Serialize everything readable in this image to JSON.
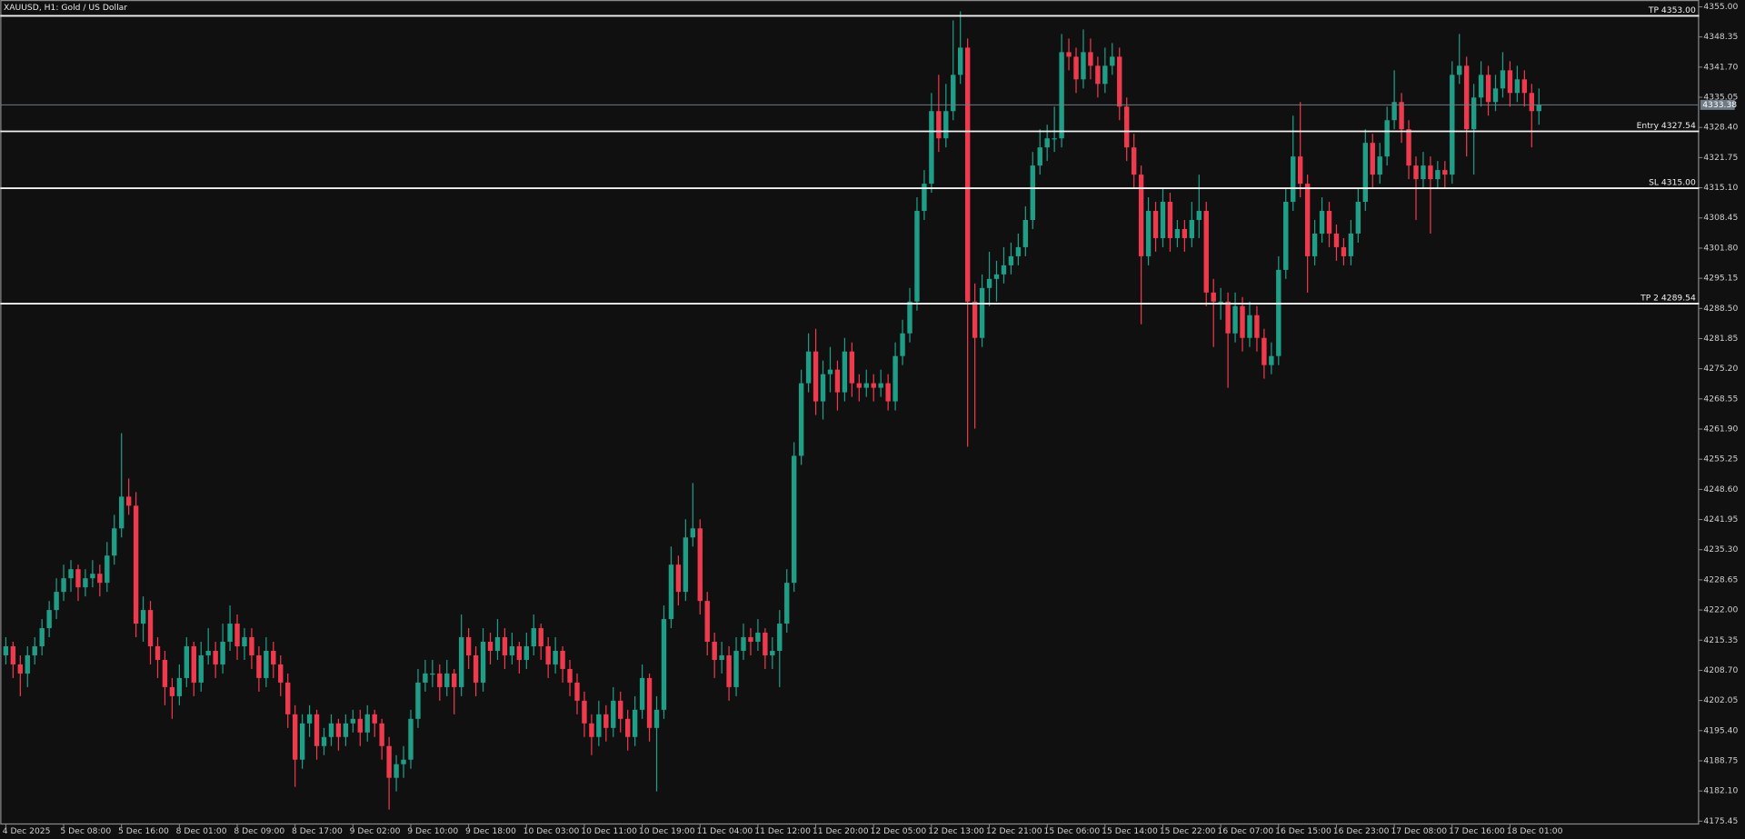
{
  "chart_data": {
    "type": "candlestick",
    "title": "XAUUSD, H1:  Gold / US Dollar",
    "up_color": "#1f9e87",
    "down_color": "#ee3a4c",
    "ylim": [
      4174.7,
      4356.5
    ],
    "yticks": [
      {
        "value": 4355,
        "label": "4355.00"
      },
      4348.35,
      {
        "value": 4341.7,
        "label": "4341.70"
      },
      4335.05,
      {
        "value": 4328.4,
        "label": "4328.40"
      },
      4321.75,
      {
        "value": 4315.1,
        "label": "4315.10"
      },
      4308.45,
      {
        "value": 4301.8,
        "label": "4301.80"
      },
      4295.15,
      {
        "value": 4288.5,
        "label": "4288.50"
      },
      4281.85,
      {
        "value": 4275.2,
        "label": "4275.20"
      },
      4268.55,
      {
        "value": 4261.9,
        "label": "4261.90"
      },
      4255.25,
      {
        "value": 4248.6,
        "label": "4248.60"
      },
      4241.95,
      {
        "value": 4235.3,
        "label": "4235.30"
      },
      4228.65,
      {
        "value": 4222,
        "label": "4222.00"
      },
      4215.35,
      {
        "value": 4208.7,
        "label": "4208.70"
      },
      4202.05,
      {
        "value": 4195.4,
        "label": "4195.40"
      },
      4188.75,
      {
        "value": 4182.1,
        "label": "4182.10"
      },
      4175.45
    ],
    "levels": [
      {
        "label": "TP 4353.00",
        "value": 4353
      },
      {
        "label": "Entry 4327.54",
        "value": 4327.54
      },
      {
        "label": "SL 4315.00",
        "value": 4315
      },
      {
        "label": "TP 2 4289.54",
        "value": 4289.54
      }
    ],
    "bid_line": 4333.38,
    "x": [
      "4 Dec 2025",
      null,
      null,
      null,
      null,
      null,
      null,
      null,
      "5 Dec 08:00",
      null,
      null,
      null,
      null,
      null,
      null,
      null,
      "5 Dec 16:00",
      null,
      null,
      null,
      null,
      null,
      null,
      null,
      "8 Dec 01:00",
      null,
      null,
      null,
      null,
      null,
      null,
      null,
      "8 Dec 09:00",
      null,
      null,
      null,
      null,
      null,
      null,
      null,
      "8 Dec 17:00",
      null,
      null,
      null,
      null,
      null,
      null,
      null,
      "9 Dec 02:00",
      null,
      null,
      null,
      null,
      null,
      null,
      null,
      "9 Dec 10:00",
      null,
      null,
      null,
      null,
      null,
      null,
      null,
      "9 Dec 18:00",
      null,
      null,
      null,
      null,
      null,
      null,
      null,
      "10 Dec 03:00",
      null,
      null,
      null,
      null,
      null,
      null,
      null,
      "10 Dec 11:00",
      null,
      null,
      null,
      null,
      null,
      null,
      null,
      "10 Dec 19:00",
      null,
      null,
      null,
      null,
      null,
      null,
      null,
      "11 Dec 04:00",
      null,
      null,
      null,
      null,
      null,
      null,
      null,
      "11 Dec 12:00",
      null,
      null,
      null,
      null,
      null,
      null,
      null,
      "11 Dec 20:00",
      null,
      null,
      null,
      null,
      null,
      null,
      null,
      "12 Dec 05:00",
      null,
      null,
      null,
      null,
      null,
      null,
      null,
      "12 Dec 13:00",
      null,
      null,
      null,
      null,
      null,
      null,
      null,
      "12 Dec 21:00",
      null,
      null,
      null,
      null,
      null,
      null,
      null,
      "15 Dec 06:00",
      null,
      null,
      null,
      null,
      null,
      null,
      null,
      "15 Dec 14:00",
      null,
      null,
      null,
      null,
      null,
      null,
      null,
      "15 Dec 22:00",
      null,
      null,
      null,
      null,
      null,
      null,
      null,
      "16 Dec 07:00",
      null,
      null,
      null,
      null,
      null,
      null,
      null,
      "16 Dec 15:00",
      null,
      null,
      null,
      null,
      null,
      null,
      null,
      "16 Dec 23:00",
      null,
      null,
      null,
      null,
      null,
      null,
      null,
      "17 Dec 08:00",
      null,
      null,
      null,
      null,
      null,
      null,
      null,
      "17 Dec 16:00",
      null,
      null,
      null,
      null,
      null,
      null,
      null,
      "18 Dec 01:00",
      null,
      null,
      null,
      null
    ],
    "candles": [
      [
        4212,
        4216,
        4210,
        4214
      ],
      [
        4214,
        4215,
        4207,
        4210
      ],
      [
        4210,
        4212,
        4203,
        4208
      ],
      [
        4208,
        4214,
        4205,
        4212
      ],
      [
        4212,
        4216,
        4210,
        4214
      ],
      [
        4214,
        4220,
        4212,
        4218
      ],
      [
        4218,
        4224,
        4216,
        4222
      ],
      [
        4222,
        4229,
        4220,
        4226
      ],
      [
        4226,
        4232,
        4224,
        4229
      ],
      [
        4229,
        4233,
        4226,
        4231
      ],
      [
        4231,
        4232,
        4224,
        4227
      ],
      [
        4227,
        4231,
        4225,
        4229
      ],
      [
        4229,
        4233,
        4227,
        4230
      ],
      [
        4230,
        4232,
        4225,
        4228
      ],
      [
        4228,
        4237,
        4226,
        4234
      ],
      [
        4234,
        4243,
        4232,
        4240
      ],
      [
        4240,
        4261,
        4238,
        4247
      ],
      [
        4247,
        4251,
        4243,
        4245
      ],
      [
        4245,
        4248,
        4216,
        4219
      ],
      [
        4219,
        4225,
        4215,
        4222
      ],
      [
        4222,
        4224,
        4210,
        4214
      ],
      [
        4214,
        4216,
        4207,
        4211
      ],
      [
        4211,
        4213,
        4201,
        4205
      ],
      [
        4205,
        4207,
        4198,
        4203
      ],
      [
        4203,
        4210,
        4201,
        4207
      ],
      [
        4207,
        4216,
        4205,
        4214
      ],
      [
        4214,
        4215,
        4203,
        4206
      ],
      [
        4206,
        4215,
        4204,
        4212
      ],
      [
        4212,
        4218,
        4210,
        4213
      ],
      [
        4213,
        4215,
        4207,
        4210
      ],
      [
        4210,
        4219,
        4208,
        4215
      ],
      [
        4215,
        4223,
        4213,
        4219
      ],
      [
        4219,
        4221,
        4211,
        4214
      ],
      [
        4214,
        4218,
        4211,
        4216
      ],
      [
        4216,
        4218,
        4209,
        4212
      ],
      [
        4212,
        4214,
        4204,
        4207
      ],
      [
        4207,
        4216,
        4205,
        4213
      ],
      [
        4213,
        4215,
        4207,
        4210
      ],
      [
        4210,
        4212,
        4203,
        4206
      ],
      [
        4206,
        4208,
        4196,
        4199
      ],
      [
        4199,
        4201,
        4183,
        4189
      ],
      [
        4189,
        4199,
        4187,
        4197
      ],
      [
        4197,
        4201,
        4194,
        4199
      ],
      [
        4199,
        4200,
        4189,
        4192
      ],
      [
        4192,
        4196,
        4190,
        4194
      ],
      [
        4194,
        4199,
        4192,
        4197
      ],
      [
        4197,
        4198,
        4191,
        4194
      ],
      [
        4194,
        4199,
        4192,
        4197
      ],
      [
        4197,
        4200,
        4195,
        4198
      ],
      [
        4198,
        4200,
        4192,
        4195
      ],
      [
        4195,
        4201,
        4193,
        4199
      ],
      [
        4199,
        4200,
        4194,
        4197
      ],
      [
        4197,
        4198,
        4189,
        4192
      ],
      [
        4192,
        4194,
        4178,
        4185
      ],
      [
        4185,
        4190,
        4182,
        4188
      ],
      [
        4188,
        4192,
        4185,
        4189
      ],
      [
        4189,
        4200,
        4187,
        4198
      ],
      [
        4198,
        4209,
        4196,
        4206
      ],
      [
        4206,
        4211,
        4204,
        4208
      ],
      [
        4208,
        4211,
        4205,
        4208
      ],
      [
        4208,
        4210,
        4202,
        4205
      ],
      [
        4205,
        4211,
        4203,
        4208
      ],
      [
        4208,
        4209,
        4199,
        4205
      ],
      [
        4205,
        4221,
        4203,
        4216
      ],
      [
        4216,
        4218,
        4209,
        4212
      ],
      [
        4212,
        4214,
        4203,
        4206
      ],
      [
        4206,
        4218,
        4204,
        4215
      ],
      [
        4215,
        4217,
        4210,
        4213
      ],
      [
        4213,
        4220,
        4211,
        4216
      ],
      [
        4216,
        4218,
        4209,
        4212
      ],
      [
        4212,
        4217,
        4210,
        4214
      ],
      [
        4214,
        4215,
        4208,
        4211
      ],
      [
        4211,
        4217,
        4209,
        4214
      ],
      [
        4214,
        4221,
        4212,
        4218
      ],
      [
        4218,
        4219,
        4211,
        4214
      ],
      [
        4214,
        4216,
        4207,
        4210
      ],
      [
        4210,
        4216,
        4208,
        4213
      ],
      [
        4213,
        4214,
        4206,
        4209
      ],
      [
        4209,
        4211,
        4203,
        4206
      ],
      [
        4206,
        4208,
        4199,
        4202
      ],
      [
        4202,
        4204,
        4194,
        4197
      ],
      [
        4197,
        4199,
        4190,
        4194
      ],
      [
        4194,
        4202,
        4192,
        4199
      ],
      [
        4199,
        4201,
        4193,
        4196
      ],
      [
        4196,
        4205,
        4194,
        4202
      ],
      [
        4202,
        4204,
        4195,
        4198
      ],
      [
        4198,
        4200,
        4191,
        4194
      ],
      [
        4194,
        4203,
        4192,
        4200
      ],
      [
        4200,
        4210,
        4198,
        4207
      ],
      [
        4207,
        4208,
        4193,
        4196
      ],
      [
        4196,
        4203,
        4182,
        4200
      ],
      [
        4200,
        4223,
        4198,
        4220
      ],
      [
        4220,
        4236,
        4218,
        4232
      ],
      [
        4232,
        4234,
        4223,
        4226
      ],
      [
        4226,
        4242,
        4224,
        4238
      ],
      [
        4238,
        4250,
        4236,
        4240
      ],
      [
        4240,
        4242,
        4221,
        4224
      ],
      [
        4224,
        4226,
        4212,
        4215
      ],
      [
        4215,
        4217,
        4207,
        4211
      ],
      [
        4211,
        4215,
        4208,
        4212
      ],
      [
        4212,
        4214,
        4202,
        4205
      ],
      [
        4205,
        4216,
        4203,
        4213
      ],
      [
        4213,
        4219,
        4211,
        4216
      ],
      [
        4216,
        4218,
        4212,
        4215
      ],
      [
        4215,
        4220,
        4213,
        4217
      ],
      [
        4217,
        4218,
        4209,
        4212
      ],
      [
        4212,
        4216,
        4209,
        4213
      ],
      [
        4213,
        4222,
        4205,
        4219
      ],
      [
        4219,
        4231,
        4217,
        4228
      ],
      [
        4228,
        4259,
        4226,
        4256
      ],
      [
        4256,
        4275,
        4254,
        4272
      ],
      [
        4272,
        4283,
        4270,
        4279
      ],
      [
        4279,
        4284,
        4265,
        4268
      ],
      [
        4268,
        4277,
        4264,
        4274
      ],
      [
        4274,
        4280,
        4270,
        4275
      ],
      [
        4275,
        4277,
        4266,
        4270
      ],
      [
        4270,
        4282,
        4268,
        4279
      ],
      [
        4279,
        4281,
        4269,
        4272
      ],
      [
        4272,
        4274,
        4268,
        4271
      ],
      [
        4271,
        4275,
        4269,
        4272
      ],
      [
        4272,
        4274,
        4268,
        4271
      ],
      [
        4271,
        4275,
        4269,
        4272
      ],
      [
        4272,
        4274,
        4266,
        4268
      ],
      [
        4268,
        4281,
        4266,
        4278
      ],
      [
        4278,
        4286,
        4276,
        4283
      ],
      [
        4283,
        4293,
        4281,
        4290
      ],
      [
        4290,
        4313,
        4288,
        4310
      ],
      [
        4310,
        4319,
        4308,
        4316
      ],
      [
        4316,
        4336,
        4314,
        4332
      ],
      [
        4332,
        4340,
        4323,
        4326
      ],
      [
        4326,
        4338,
        4324,
        4332
      ],
      [
        4332,
        4352,
        4330,
        4340
      ],
      [
        4340,
        4354,
        4338,
        4346
      ],
      [
        4346,
        4348,
        4258,
        4290
      ],
      [
        4290,
        4294,
        4262,
        4282
      ],
      [
        4282,
        4296,
        4280,
        4293
      ],
      [
        4293,
        4301,
        4289,
        4295
      ],
      [
        4295,
        4299,
        4290,
        4296
      ],
      [
        4296,
        4302,
        4294,
        4298
      ],
      [
        4298,
        4303,
        4296,
        4300
      ],
      [
        4300,
        4305,
        4298,
        4302
      ],
      [
        4302,
        4311,
        4300,
        4308
      ],
      [
        4308,
        4323,
        4306,
        4320
      ],
      [
        4320,
        4328,
        4318,
        4324
      ],
      [
        4324,
        4329,
        4321,
        4326
      ],
      [
        4326,
        4333,
        4323,
        4326
      ],
      [
        4326,
        4349,
        4324,
        4345
      ],
      [
        4345,
        4348,
        4341,
        4344
      ],
      [
        4344,
        4346,
        4336,
        4339
      ],
      [
        4339,
        4350,
        4337,
        4345
      ],
      [
        4345,
        4348,
        4339,
        4342
      ],
      [
        4342,
        4344,
        4335,
        4338
      ],
      [
        4338,
        4346,
        4336,
        4342
      ],
      [
        4342,
        4347,
        4340,
        4344
      ],
      [
        4344,
        4346,
        4330,
        4333
      ],
      [
        4333,
        4335,
        4321,
        4324
      ],
      [
        4324,
        4327,
        4315,
        4318
      ],
      [
        4318,
        4320,
        4285,
        4300
      ],
      [
        4300,
        4313,
        4298,
        4310
      ],
      [
        4310,
        4312,
        4301,
        4304
      ],
      [
        4304,
        4315,
        4302,
        4312
      ],
      [
        4312,
        4314,
        4301,
        4304
      ],
      [
        4304,
        4308,
        4302,
        4306
      ],
      [
        4306,
        4308,
        4301,
        4304
      ],
      [
        4304,
        4312,
        4302,
        4308
      ],
      [
        4308,
        4318,
        4304,
        4310
      ],
      [
        4310,
        4312,
        4289,
        4292
      ],
      [
        4292,
        4295,
        4280,
        4290
      ],
      [
        4290,
        4293,
        4286,
        4290
      ],
      [
        4290,
        4292,
        4271,
        4283
      ],
      [
        4283,
        4292,
        4281,
        4289
      ],
      [
        4289,
        4291,
        4279,
        4282
      ],
      [
        4282,
        4290,
        4280,
        4287
      ],
      [
        4287,
        4289,
        4279,
        4282
      ],
      [
        4282,
        4284,
        4273,
        4276
      ],
      [
        4276,
        4281,
        4274,
        4278
      ],
      [
        4278,
        4300,
        4276,
        4297
      ],
      [
        4297,
        4315,
        4295,
        4312
      ],
      [
        4312,
        4331,
        4310,
        4322
      ],
      [
        4322,
        4334,
        4313,
        4316
      ],
      [
        4316,
        4318,
        4292,
        4300
      ],
      [
        4300,
        4308,
        4298,
        4305
      ],
      [
        4305,
        4313,
        4303,
        4310
      ],
      [
        4310,
        4312,
        4302,
        4305
      ],
      [
        4305,
        4307,
        4299,
        4302
      ],
      [
        4302,
        4304,
        4298,
        4300
      ],
      [
        4300,
        4308,
        4298,
        4305
      ],
      [
        4305,
        4315,
        4303,
        4312
      ],
      [
        4312,
        4328,
        4310,
        4325
      ],
      [
        4325,
        4327,
        4315,
        4318
      ],
      [
        4318,
        4325,
        4316,
        4322
      ],
      [
        4322,
        4333,
        4320,
        4330
      ],
      [
        4330,
        4341,
        4328,
        4334
      ],
      [
        4334,
        4336,
        4325,
        4328
      ],
      [
        4328,
        4330,
        4317,
        4320
      ],
      [
        4320,
        4322,
        4308,
        4317
      ],
      [
        4317,
        4323,
        4315,
        4320
      ],
      [
        4320,
        4322,
        4305,
        4317
      ],
      [
        4317,
        4321,
        4315,
        4319
      ],
      [
        4319,
        4321,
        4315,
        4318
      ],
      [
        4318,
        4343,
        4316,
        4340
      ],
      [
        4340,
        4349,
        4338,
        4342
      ],
      [
        4342,
        4344,
        4322,
        4328
      ],
      [
        4328,
        4338,
        4318,
        4335
      ],
      [
        4335,
        4343,
        4333,
        4340
      ],
      [
        4340,
        4342,
        4331,
        4334
      ],
      [
        4334,
        4340,
        4332,
        4337
      ],
      [
        4337,
        4345,
        4335,
        4341
      ],
      [
        4341,
        4343,
        4333,
        4336
      ],
      [
        4336,
        4342,
        4334,
        4339
      ],
      [
        4339,
        4341,
        4333,
        4336
      ],
      [
        4336,
        4338,
        4324,
        4332
      ],
      [
        4332,
        4337,
        4329,
        4333.38
      ]
    ]
  }
}
